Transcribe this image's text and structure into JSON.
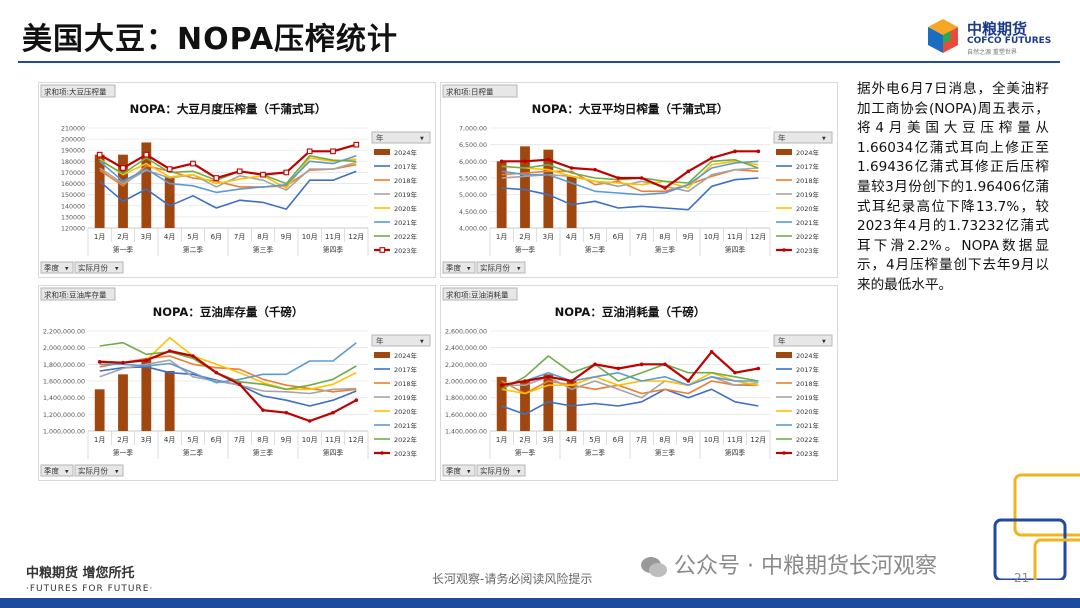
{
  "header": {
    "title": "美国大豆：NOPA压榨统计"
  },
  "logo": {
    "name_cn": "中粮期货",
    "name_en": "COFCO FUTURES",
    "tagline": "自然之源  重塑世界"
  },
  "filter": {
    "season_label": "季度",
    "month_label": "实际月份",
    "year_label": "年"
  },
  "axis": {
    "months": [
      "1月",
      "2月",
      "3月",
      "4月",
      "5月",
      "6月",
      "7月",
      "8月",
      "9月",
      "10月",
      "11月",
      "12月"
    ],
    "quarters": [
      "第一季",
      "第二季",
      "第三季",
      "第四季"
    ]
  },
  "legend": [
    "2024年",
    "2017年",
    "2018年",
    "2019年",
    "2020年",
    "2021年",
    "2022年",
    "2023年"
  ],
  "colors": {
    "2024": "#a0460f",
    "2017": "#3e6fc6",
    "2018": "#ed7d31",
    "2019": "#a5a5a5",
    "2020": "#ffc000",
    "2021": "#5b9bd5",
    "2022": "#70ad47",
    "2023": "#c00000"
  },
  "chart_data": [
    {
      "type": "bar+line",
      "tag": "求和项:大豆压榨量",
      "title": "NOPA：大豆月度压榨量（千蒲式耳）",
      "ylim": [
        120000,
        210000
      ],
      "ytick_step": 10000,
      "ytick_labels": [
        "120000",
        "130000",
        "140000",
        "150000",
        "160000",
        "170000",
        "180000",
        "190000",
        "200000",
        "210000"
      ],
      "bar_series": {
        "name": "2024年",
        "values": [
          186000,
          186000,
          197000,
          166000
        ]
      },
      "series": [
        {
          "name": "2017年",
          "values": [
            162000,
            144000,
            155000,
            140000,
            149000,
            138000,
            145000,
            143000,
            137000,
            163000,
            163000,
            171000
          ]
        },
        {
          "name": "2018年",
          "values": [
            172000,
            158000,
            176000,
            171000,
            165000,
            162000,
            157000,
            157000,
            158000,
            172000,
            173000,
            177000
          ]
        },
        {
          "name": "2019年",
          "values": [
            174000,
            160000,
            172000,
            165000,
            168000,
            157000,
            167000,
            163000,
            154000,
            173000,
            173000,
            179000
          ]
        },
        {
          "name": "2020年",
          "values": [
            182000,
            168000,
            178000,
            166000,
            168000,
            160000,
            164000,
            167000,
            156000,
            183000,
            180000,
            182000
          ]
        },
        {
          "name": "2021年",
          "values": [
            180000,
            162000,
            173000,
            160000,
            158000,
            152000,
            155000,
            157000,
            159000,
            180000,
            178000,
            185000
          ]
        },
        {
          "name": "2022年",
          "values": [
            181000,
            169000,
            183000,
            170000,
            171000,
            163000,
            171000,
            168000,
            160000,
            185000,
            181000,
            180000
          ]
        },
        {
          "name": "2023年",
          "values": [
            186000,
            174000,
            186000,
            173000,
            178000,
            165000,
            171000,
            168000,
            170000,
            189000,
            189000,
            195000
          ]
        }
      ]
    },
    {
      "type": "bar+line",
      "tag": "求和项:日榨量",
      "title": "NOPA：大豆平均日榨量（千蒲式耳）",
      "ylim": [
        4000,
        7000
      ],
      "ytick_step": 500,
      "ytick_labels": [
        "4,000.00",
        "4,500.00",
        "5,000.00",
        "5,500.00",
        "6,000.00",
        "6,500.00",
        "7,000.00"
      ],
      "bar_series": {
        "name": "2024年",
        "values": [
          6000,
          6450,
          6350,
          5550
        ]
      },
      "series": [
        {
          "name": "2017年",
          "values": [
            5200,
            5150,
            5000,
            4700,
            4800,
            4600,
            4650,
            4600,
            4550,
            5250,
            5450,
            5500
          ]
        },
        {
          "name": "2018年",
          "values": [
            5600,
            5650,
            5700,
            5700,
            5300,
            5400,
            5100,
            5100,
            5300,
            5550,
            5750,
            5700
          ]
        },
        {
          "name": "2019年",
          "values": [
            5500,
            5550,
            5600,
            5550,
            5400,
            5250,
            5400,
            5250,
            5100,
            5600,
            5750,
            5800
          ]
        },
        {
          "name": "2020年",
          "values": [
            5850,
            5800,
            5750,
            5550,
            5400,
            5350,
            5300,
            5400,
            5200,
            5900,
            6000,
            5900
          ]
        },
        {
          "name": "2021年",
          "values": [
            5700,
            5600,
            5600,
            5350,
            5100,
            5050,
            5000,
            5050,
            5300,
            5800,
            5950,
            6000
          ]
        },
        {
          "name": "2022年",
          "values": [
            5850,
            5800,
            5900,
            5650,
            5500,
            5450,
            5500,
            5400,
            5350,
            6000,
            6050,
            5800
          ]
        },
        {
          "name": "2023年",
          "values": [
            6000,
            6000,
            6050,
            5800,
            5750,
            5500,
            5500,
            5200,
            5700,
            6100,
            6300,
            6300
          ]
        }
      ]
    },
    {
      "type": "bar+line",
      "tag": "求和项:豆油库存量",
      "title": "NOPA：豆油库存量（千磅）",
      "ylim": [
        1000000,
        2200000
      ],
      "ytick_step": 200000,
      "ytick_labels": [
        "1,000,000.00",
        "1,200,000.00",
        "1,400,000.00",
        "1,600,000.00",
        "1,800,000.00",
        "2,000,000.00",
        "2,200,000.00"
      ],
      "bar_series": {
        "name": "2024年",
        "values": [
          1500000,
          1680000,
          1870000,
          1720000
        ]
      },
      "series": [
        {
          "name": "2017年",
          "values": [
            1720000,
            1760000,
            1770000,
            1700000,
            1680000,
            1610000,
            1550000,
            1420000,
            1370000,
            1300000,
            1370000,
            1480000
          ]
        },
        {
          "name": "2018年",
          "values": [
            1770000,
            1820000,
            1870000,
            1900000,
            1800000,
            1760000,
            1740000,
            1620000,
            1550000,
            1510000,
            1470000,
            1500000
          ]
        },
        {
          "name": "2019年",
          "values": [
            1650000,
            1750000,
            1800000,
            1850000,
            1650000,
            1600000,
            1550000,
            1480000,
            1470000,
            1450000,
            1500000,
            1510000
          ]
        },
        {
          "name": "2020年",
          "values": [
            1840000,
            1820000,
            1850000,
            2120000,
            1900000,
            1800000,
            1700000,
            1580000,
            1500000,
            1500000,
            1560000,
            1700000
          ]
        },
        {
          "name": "2021年",
          "values": [
            1800000,
            1800000,
            1780000,
            1810000,
            1700000,
            1580000,
            1620000,
            1680000,
            1680000,
            1840000,
            1840000,
            2060000
          ]
        },
        {
          "name": "2022年",
          "values": [
            2020000,
            2060000,
            1920000,
            1950000,
            1870000,
            1700000,
            1590000,
            1560000,
            1500000,
            1550000,
            1620000,
            1780000
          ]
        },
        {
          "name": "2023年",
          "values": [
            1830000,
            1820000,
            1850000,
            1960000,
            1900000,
            1700000,
            1560000,
            1250000,
            1220000,
            1120000,
            1220000,
            1370000
          ]
        }
      ]
    },
    {
      "type": "bar+line",
      "tag": "求和项:豆油消耗量",
      "title": "NOPA：豆油消耗量（千磅）",
      "ylim": [
        1400000,
        2600000
      ],
      "ytick_step": 200000,
      "ytick_labels": [
        "1,400,000.00",
        "1,600,000.00",
        "1,800,000.00",
        "2,000,000.00",
        "2,200,000.00",
        "2,400,000.00",
        "2,600,000.00"
      ],
      "bar_series": {
        "name": "2024年",
        "values": [
          2050000,
          2000000,
          2080000,
          2000000
        ]
      },
      "series": [
        {
          "name": "2017年",
          "values": [
            1700000,
            1600000,
            1750000,
            1700000,
            1730000,
            1700000,
            1750000,
            1900000,
            1800000,
            1900000,
            1750000,
            1700000
          ]
        },
        {
          "name": "2018年",
          "values": [
            2000000,
            1850000,
            2000000,
            1950000,
            1900000,
            1950000,
            1850000,
            1900000,
            1850000,
            2000000,
            1950000,
            1950000
          ]
        },
        {
          "name": "2019年",
          "values": [
            1950000,
            1950000,
            2050000,
            1900000,
            2000000,
            1900000,
            1800000,
            2000000,
            1950000,
            2050000,
            1950000,
            1980000
          ]
        },
        {
          "name": "2020年",
          "values": [
            1900000,
            1850000,
            1950000,
            1950000,
            2050000,
            1950000,
            2000000,
            2000000,
            1950000,
            2100000,
            2000000,
            1950000
          ]
        },
        {
          "name": "2021年",
          "values": [
            1950000,
            2000000,
            2100000,
            2000000,
            2050000,
            2100000,
            2000000,
            2050000,
            1950000,
            2050000,
            2000000,
            2000000
          ]
        },
        {
          "name": "2022年",
          "values": [
            1900000,
            2050000,
            2300000,
            2100000,
            2200000,
            2000000,
            2100000,
            2200000,
            2100000,
            2100000,
            2050000,
            2000000
          ]
        },
        {
          "name": "2023年",
          "values": [
            1950000,
            2000000,
            2050000,
            2000000,
            2200000,
            2150000,
            2200000,
            2200000,
            2000000,
            2350000,
            2100000,
            2150000
          ]
        }
      ]
    }
  ],
  "summary": {
    "text": "据外电6月7日消息，全美油籽加工商协会(NOPA)周五表示，将4月美国大豆压榨量从1.66034亿蒲式耳向上修正至1.69436亿蒲式耳修正后压榨量较3月份创下的1.96406亿蒲式耳纪录高位下降13.7%，较2023年4月的1.73232亿蒲式耳下滑2.2%。NOPA数据显示，4月压榨量创下去年9月以来的最低水平。"
  },
  "footer": {
    "logo_cn": "中粮期货  增您所托",
    "logo_en": "·FUTURES FOR FUTURE·",
    "disclaimer": "长河观察-请务必阅读风险提示",
    "watermark": "公众号 · 中粮期货长河观察",
    "page": "21"
  }
}
